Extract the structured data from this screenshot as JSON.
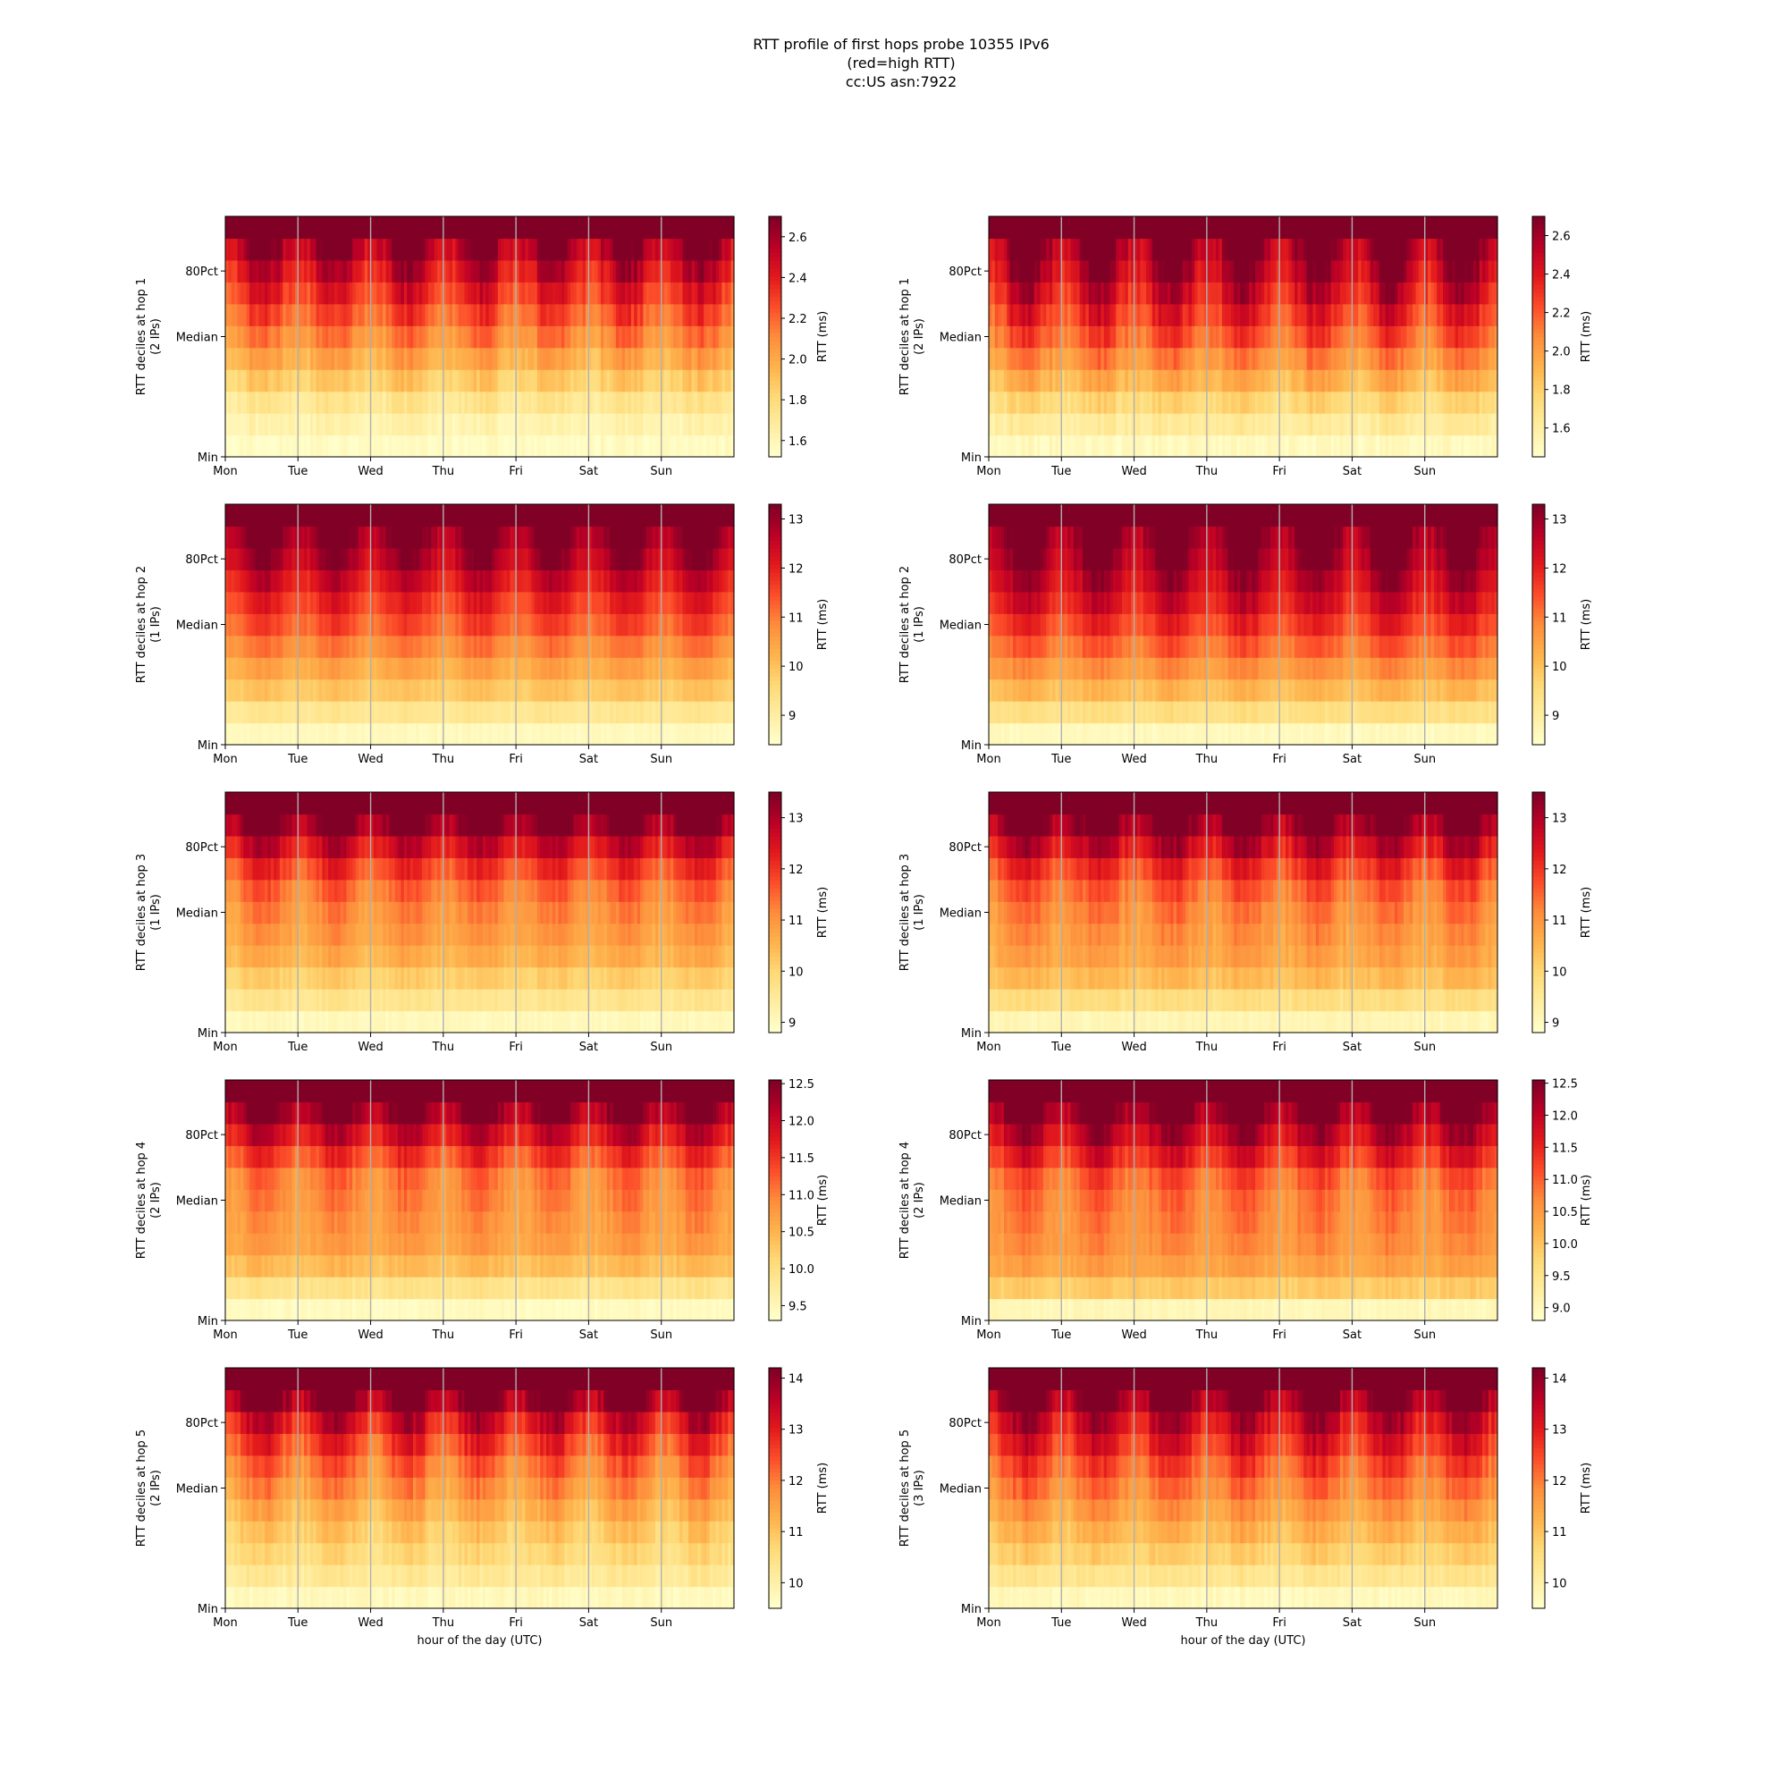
{
  "figure": {
    "title_lines": [
      "RTT profile of first hops probe 10355 IPv6",
      "(red=high RTT)",
      "cc:US asn:7922"
    ]
  },
  "colors": {
    "scale": [
      "#ffffcc",
      "#ffeda0",
      "#fed976",
      "#feb24c",
      "#fd8d3c",
      "#fc4e2a",
      "#e31a1c",
      "#bd0026",
      "#800026"
    ],
    "grid": "#b0b0b0"
  },
  "chart_data": [
    {
      "type": "heatmap",
      "panel": "hop1-left",
      "ylabel": "RTT deciles at hop 1",
      "ylabel2": "(2 IPs)",
      "yticks": [
        "Min",
        "Median",
        "80Pct"
      ],
      "xticks": [
        "Mon",
        "Tue",
        "Wed",
        "Thu",
        "Fri",
        "Sat",
        "Sun"
      ],
      "xlabel": "",
      "colorbar": {
        "label": "RTT (ms)",
        "min": 1.52,
        "max": 2.7,
        "ticks": [
          1.6,
          1.8,
          2.0,
          2.2,
          2.4,
          2.6
        ],
        "tick_labels": [
          "1.6",
          "1.8",
          "2.0",
          "2.2",
          "2.4",
          "2.6"
        ]
      },
      "deciles": [
        1.55,
        1.62,
        1.72,
        1.86,
        2.0,
        2.12,
        2.24,
        2.36,
        2.48,
        2.62,
        2.7
      ],
      "diurnal_amplitude": 0.2,
      "noise": 0.12,
      "seed": 11
    },
    {
      "type": "heatmap",
      "panel": "hop1-right",
      "ylabel": "RTT deciles at hop 1",
      "ylabel2": "(2 IPs)",
      "yticks": [
        "Min",
        "Median",
        "80Pct"
      ],
      "xticks": [
        "Mon",
        "Tue",
        "Wed",
        "Thu",
        "Fri",
        "Sat",
        "Sun"
      ],
      "xlabel": "",
      "colorbar": {
        "label": "RTT (ms)",
        "min": 1.45,
        "max": 2.7,
        "ticks": [
          1.6,
          1.8,
          2.0,
          2.2,
          2.4,
          2.6
        ],
        "tick_labels": [
          "1.6",
          "1.8",
          "2.0",
          "2.2",
          "2.4",
          "2.6"
        ]
      },
      "deciles": [
        1.5,
        1.62,
        1.76,
        1.92,
        2.06,
        2.2,
        2.32,
        2.44,
        2.56,
        2.66,
        2.7
      ],
      "diurnal_amplitude": 0.25,
      "noise": 0.14,
      "seed": 23
    },
    {
      "type": "heatmap",
      "panel": "hop2-left",
      "ylabel": "RTT deciles at hop 2",
      "ylabel2": "(1 IPs)",
      "yticks": [
        "Min",
        "Median",
        "80Pct"
      ],
      "xticks": [
        "Mon",
        "Tue",
        "Wed",
        "Thu",
        "Fri",
        "Sat",
        "Sun"
      ],
      "xlabel": "",
      "colorbar": {
        "label": "RTT (ms)",
        "min": 8.4,
        "max": 13.3,
        "ticks": [
          9,
          10,
          11,
          12,
          13
        ],
        "tick_labels": [
          "9",
          "10",
          "11",
          "12",
          "13"
        ]
      },
      "deciles": [
        8.6,
        9.2,
        9.9,
        10.4,
        10.9,
        11.4,
        11.8,
        12.3,
        12.8,
        13.2,
        13.3
      ],
      "diurnal_amplitude": 0.7,
      "noise": 0.3,
      "seed": 37
    },
    {
      "type": "heatmap",
      "panel": "hop2-right",
      "ylabel": "RTT deciles at hop 2",
      "ylabel2": "(1 IPs)",
      "yticks": [
        "Min",
        "Median",
        "80Pct"
      ],
      "xticks": [
        "Mon",
        "Tue",
        "Wed",
        "Thu",
        "Fri",
        "Sat",
        "Sun"
      ],
      "xlabel": "",
      "colorbar": {
        "label": "RTT (ms)",
        "min": 8.4,
        "max": 13.3,
        "ticks": [
          9,
          10,
          11,
          12,
          13
        ],
        "tick_labels": [
          "9",
          "10",
          "11",
          "12",
          "13"
        ]
      },
      "deciles": [
        8.6,
        9.4,
        10.1,
        10.7,
        11.2,
        11.7,
        12.2,
        12.6,
        13.0,
        13.3,
        13.3
      ],
      "diurnal_amplitude": 0.8,
      "noise": 0.35,
      "seed": 41
    },
    {
      "type": "heatmap",
      "panel": "hop3-left",
      "ylabel": "RTT deciles at hop 3",
      "ylabel2": "(1 IPs)",
      "yticks": [
        "Min",
        "Median",
        "80Pct"
      ],
      "xticks": [
        "Mon",
        "Tue",
        "Wed",
        "Thu",
        "Fri",
        "Sat",
        "Sun"
      ],
      "xlabel": "",
      "colorbar": {
        "label": "RTT (ms)",
        "min": 8.8,
        "max": 13.5,
        "ticks": [
          9,
          10,
          11,
          12,
          13
        ],
        "tick_labels": [
          "9",
          "10",
          "11",
          "12",
          "13"
        ]
      },
      "deciles": [
        9.0,
        9.6,
        10.1,
        10.6,
        10.9,
        11.1,
        11.4,
        11.9,
        12.6,
        13.4,
        13.5
      ],
      "diurnal_amplitude": 0.6,
      "noise": 0.35,
      "seed": 53
    },
    {
      "type": "heatmap",
      "panel": "hop3-right",
      "ylabel": "RTT deciles at hop 3",
      "ylabel2": "(1 IPs)",
      "yticks": [
        "Min",
        "Median",
        "80Pct"
      ],
      "xticks": [
        "Mon",
        "Tue",
        "Wed",
        "Thu",
        "Fri",
        "Sat",
        "Sun"
      ],
      "xlabel": "",
      "colorbar": {
        "label": "RTT (ms)",
        "min": 8.8,
        "max": 13.5,
        "ticks": [
          9,
          10,
          11,
          12,
          13
        ],
        "tick_labels": [
          "9",
          "10",
          "11",
          "12",
          "13"
        ]
      },
      "deciles": [
        9.1,
        9.8,
        10.4,
        10.8,
        11.0,
        11.2,
        11.5,
        12.0,
        12.7,
        13.4,
        13.5
      ],
      "diurnal_amplitude": 0.7,
      "noise": 0.4,
      "seed": 61
    },
    {
      "type": "heatmap",
      "panel": "hop4-left",
      "ylabel": "RTT deciles at hop 4",
      "ylabel2": "(2 IPs)",
      "yticks": [
        "Min",
        "Median",
        "80Pct"
      ],
      "xticks": [
        "Mon",
        "Tue",
        "Wed",
        "Thu",
        "Fri",
        "Sat",
        "Sun"
      ],
      "xlabel": "",
      "colorbar": {
        "label": "RTT (ms)",
        "min": 9.3,
        "max": 12.55,
        "ticks": [
          9.5,
          10.0,
          10.5,
          11.0,
          11.5,
          12.0,
          12.5
        ],
        "tick_labels": [
          "9.5",
          "10.0",
          "10.5",
          "11.0",
          "11.5",
          "12.0",
          "12.5"
        ]
      },
      "deciles": [
        9.4,
        9.9,
        10.4,
        10.7,
        10.8,
        10.9,
        11.0,
        11.4,
        11.9,
        12.4,
        12.55
      ],
      "diurnal_amplitude": 0.45,
      "noise": 0.25,
      "seed": 71
    },
    {
      "type": "heatmap",
      "panel": "hop4-right",
      "ylabel": "RTT deciles at hop 4",
      "ylabel2": "(2 IPs)",
      "yticks": [
        "Min",
        "Median",
        "80Pct"
      ],
      "xticks": [
        "Mon",
        "Tue",
        "Wed",
        "Thu",
        "Fri",
        "Sat",
        "Sun"
      ],
      "xlabel": "",
      "colorbar": {
        "label": "RTT (ms)",
        "min": 8.8,
        "max": 12.55,
        "ticks": [
          9.0,
          9.5,
          10.0,
          10.5,
          11.0,
          11.5,
          12.0,
          12.5
        ],
        "tick_labels": [
          "9.0",
          "9.5",
          "10.0",
          "10.5",
          "11.0",
          "11.5",
          "12.0",
          "12.5"
        ]
      },
      "deciles": [
        9.0,
        9.9,
        10.4,
        10.6,
        10.7,
        10.8,
        11.0,
        11.5,
        12.0,
        12.5,
        12.55
      ],
      "diurnal_amplitude": 0.55,
      "noise": 0.3,
      "seed": 83
    },
    {
      "type": "heatmap",
      "panel": "hop5-left",
      "ylabel": "RTT deciles at hop 5",
      "ylabel2": "(2 IPs)",
      "yticks": [
        "Min",
        "Median",
        "80Pct"
      ],
      "xticks": [
        "Mon",
        "Tue",
        "Wed",
        "Thu",
        "Fri",
        "Sat",
        "Sun"
      ],
      "xlabel": "hour of the day (UTC)",
      "colorbar": {
        "label": "RTT (ms)",
        "min": 9.5,
        "max": 14.2,
        "ticks": [
          10,
          11,
          12,
          13,
          14
        ],
        "tick_labels": [
          "10",
          "11",
          "12",
          "13",
          "14"
        ]
      },
      "deciles": [
        9.7,
        10.2,
        10.6,
        10.9,
        11.3,
        11.7,
        12.1,
        12.6,
        13.2,
        14.1,
        14.2
      ],
      "diurnal_amplitude": 0.8,
      "noise": 0.45,
      "seed": 97
    },
    {
      "type": "heatmap",
      "panel": "hop5-right",
      "ylabel": "RTT deciles at hop 5",
      "ylabel2": "(3 IPs)",
      "yticks": [
        "Min",
        "Median",
        "80Pct"
      ],
      "xticks": [
        "Mon",
        "Tue",
        "Wed",
        "Thu",
        "Fri",
        "Sat",
        "Sun"
      ],
      "xlabel": "hour of the day (UTC)",
      "colorbar": {
        "label": "RTT (ms)",
        "min": 9.5,
        "max": 14.2,
        "ticks": [
          10,
          11,
          12,
          13,
          14
        ],
        "tick_labels": [
          "10",
          "11",
          "12",
          "13",
          "14"
        ]
      },
      "deciles": [
        9.7,
        10.3,
        10.8,
        11.2,
        11.6,
        12.0,
        12.4,
        12.9,
        13.4,
        14.1,
        14.2
      ],
      "diurnal_amplitude": 0.8,
      "noise": 0.45,
      "seed": 103
    }
  ]
}
